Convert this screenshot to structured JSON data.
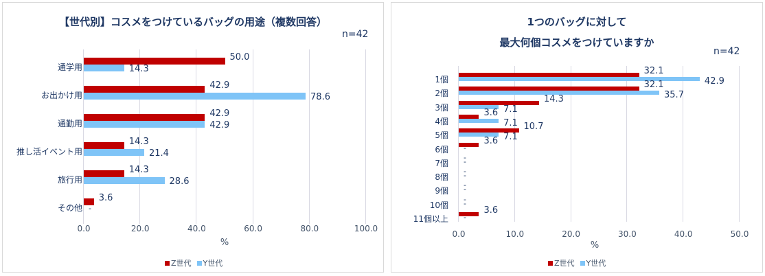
{
  "colors": {
    "z_gen": "#c00000",
    "y_gen": "#7fc4f7",
    "text": "#1f3864"
  },
  "legend": {
    "z": "Z世代",
    "y": "Y世代"
  },
  "chart_data": [
    {
      "type": "bar",
      "orientation": "horizontal",
      "title": "【世代別】コスメをつけているバッグの用途（複数回答）",
      "sample": "n=42",
      "categories": [
        "通学用",
        "お出かけ用",
        "通勤用",
        "推し活イベント用",
        "旅行用",
        "その他"
      ],
      "series": [
        {
          "name": "Z世代",
          "values": [
            50.0,
            42.9,
            42.9,
            14.3,
            14.3,
            3.6
          ],
          "labels": [
            "50.0",
            "42.9",
            "42.9",
            "14.3",
            "14.3",
            "3.6"
          ]
        },
        {
          "name": "Y世代",
          "values": [
            14.3,
            78.6,
            42.9,
            21.4,
            28.6,
            0
          ],
          "labels": [
            "14.3",
            "78.6",
            "42.9",
            "21.4",
            "28.6",
            "-"
          ]
        }
      ],
      "xlabel": "%",
      "xlim": [
        0,
        100
      ],
      "xticks": [
        "0.0",
        "20.0",
        "40.0",
        "60.0",
        "80.0",
        "100.0"
      ],
      "grid": true,
      "legend_position": "bottom"
    },
    {
      "type": "bar",
      "orientation": "horizontal",
      "title": "1つのバッグに対して 最大何個コスメをつけていますか",
      "title_lines": [
        "1つのバッグに対して",
        "最大何個コスメをつけていますか"
      ],
      "sample": "n=42",
      "categories": [
        "1個",
        "2個",
        "3個",
        "4個",
        "5個",
        "6個",
        "7個",
        "8個",
        "9個",
        "10個",
        "11個以上"
      ],
      "series": [
        {
          "name": "Z世代",
          "values": [
            32.1,
            32.1,
            14.3,
            3.6,
            10.7,
            3.6,
            0,
            0,
            0,
            0,
            3.6
          ],
          "labels": [
            "32.1",
            "32.1",
            "14.3",
            "3.6",
            "10.7",
            "3.6",
            "-",
            "-",
            "-",
            "-",
            "3.6"
          ]
        },
        {
          "name": "Y世代",
          "values": [
            42.9,
            35.7,
            7.1,
            7.1,
            7.1,
            0,
            0,
            0,
            0,
            0,
            0
          ],
          "labels": [
            "42.9",
            "35.7",
            "7.1",
            "7.1",
            "7.1",
            "-",
            "-",
            "-",
            "-",
            "-",
            "-"
          ]
        }
      ],
      "xlabel": "%",
      "xlim": [
        0,
        50
      ],
      "xticks": [
        "0.0",
        "10.0",
        "20.0",
        "30.0",
        "40.0",
        "50.0"
      ],
      "grid": true,
      "legend_position": "bottom"
    }
  ]
}
